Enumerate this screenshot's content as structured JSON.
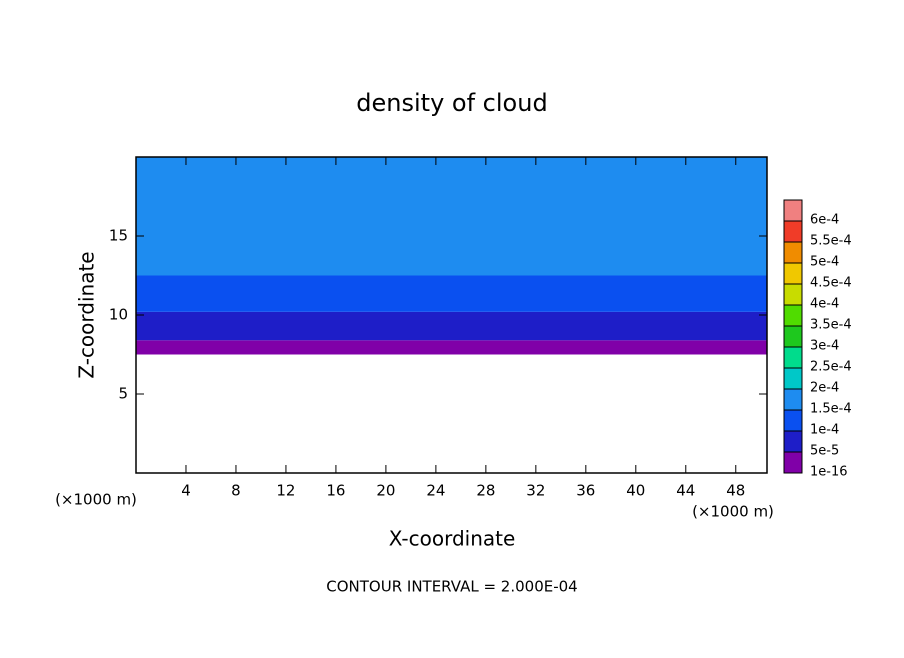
{
  "chart_data": {
    "type": "contour",
    "title": "density of cloud",
    "x_label": "X-coordinate",
    "y_label": "Z-coordinate",
    "x_unit_left": "(×1000 m)",
    "x_unit_right": "(×1000 m)",
    "annotation": "CONTOUR INTERVAL = 2.000E-04",
    "xlim": [
      0,
      50.5
    ],
    "xticks": [
      4,
      8,
      12,
      16,
      20,
      24,
      28,
      32,
      36,
      40,
      44,
      48
    ],
    "ylim": [
      0,
      20
    ],
    "yticks": [
      5,
      10,
      15
    ],
    "levels": [
      {
        "value": 1e-16,
        "label": "1e-16"
      },
      {
        "value": 5e-05,
        "label": "5e-5"
      },
      {
        "value": 0.0001,
        "label": "1e-4"
      },
      {
        "value": 0.00015,
        "label": "1.5e-4"
      },
      {
        "value": 0.0002,
        "label": "2e-4"
      },
      {
        "value": 0.00025,
        "label": "2.5e-4"
      },
      {
        "value": 0.0003,
        "label": "3e-4"
      },
      {
        "value": 0.00035,
        "label": "3.5e-4"
      },
      {
        "value": 0.0004,
        "label": "4e-4"
      },
      {
        "value": 0.00045,
        "label": "4.5e-4"
      },
      {
        "value": 0.0005,
        "label": "5e-4"
      },
      {
        "value": 0.00055,
        "label": "5.5e-4"
      },
      {
        "value": 0.0006,
        "label": "6e-4"
      }
    ],
    "level_colors": [
      "#8000a8",
      "#1e1ec8",
      "#0a50f0",
      "#1e8cf0",
      "#00c8c8",
      "#00dc8c",
      "#1ec81e",
      "#50dc00",
      "#c8dc00",
      "#f0c800",
      "#f08c00",
      "#f03c28",
      "#f08080"
    ],
    "bands": [
      {
        "z": [
          7.5,
          8.4
        ],
        "value": 1e-16
      },
      {
        "z": [
          8.4,
          10.2
        ],
        "value": 5e-05
      },
      {
        "z": [
          10.2,
          12.5
        ],
        "value": 0.0001
      },
      {
        "z": [
          12.5,
          20
        ],
        "value": 0.00015
      }
    ]
  }
}
